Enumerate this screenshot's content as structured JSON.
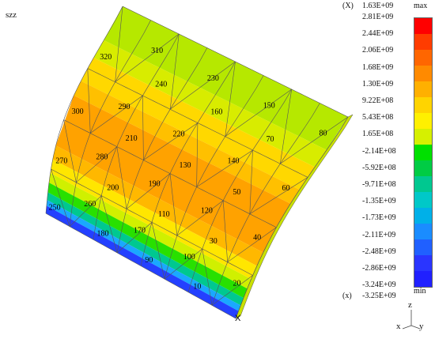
{
  "result_component": "szz",
  "legend": {
    "header_marker": "(X)",
    "header_value": "1.63E+09",
    "max_label": "max",
    "min_label": "min",
    "footer_marker": "(x)",
    "footer_value": "-3.25E+09",
    "ticks": [
      "2.81E+09",
      "2.44E+09",
      "2.06E+09",
      "1.68E+09",
      "1.30E+09",
      "9.22E+08",
      "5.43E+08",
      "1.65E+08",
      "-2.14E+08",
      "-5.92E+08",
      "-9.71E+08",
      "-1.35E+09",
      "-1.73E+09",
      "-2.11E+09",
      "-2.48E+09",
      "-2.86E+09",
      "-3.24E+09"
    ],
    "colors": [
      "#ff0000",
      "#ff3c00",
      "#ff6600",
      "#ff8a00",
      "#ffb000",
      "#ffd400",
      "#fff000",
      "#d6f000",
      "#00e000",
      "#00cc44",
      "#00c890",
      "#00c8c8",
      "#00b0e8",
      "#1a8cff",
      "#2060ff",
      "#2a35ff",
      "#2020ff"
    ]
  },
  "element_labels": [
    "320",
    "310",
    "240",
    "230",
    "160",
    "150",
    "70",
    "80",
    "300",
    "290",
    "210",
    "220",
    "130",
    "140",
    "50",
    "60",
    "270",
    "280",
    "200",
    "190",
    "110",
    "120",
    "30",
    "40",
    "250",
    "260",
    "180",
    "170",
    "90",
    "100",
    "10",
    "20"
  ],
  "node_marker": "X",
  "triad": {
    "z": "z",
    "x": "x",
    "y": "y"
  }
}
